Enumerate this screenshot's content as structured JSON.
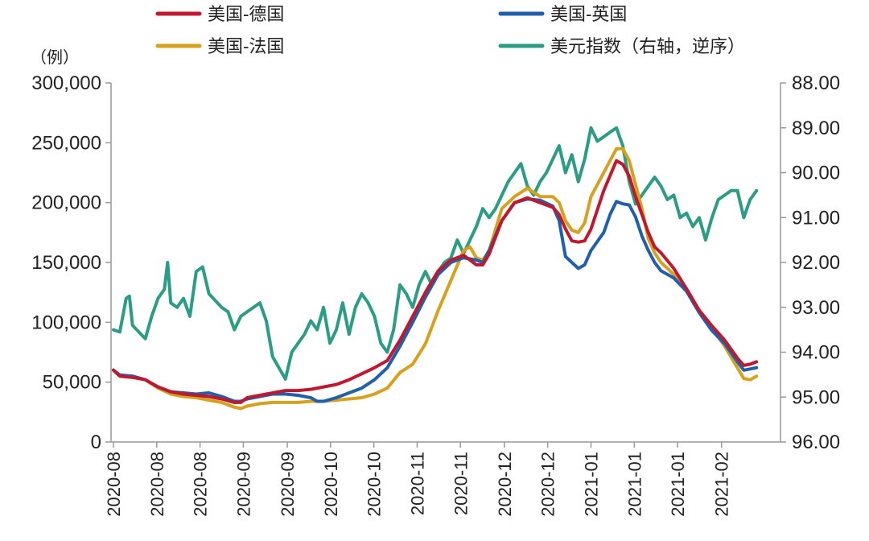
{
  "chart_data": {
    "type": "line",
    "ylabel_left": "（例）",
    "left_axis": {
      "min": 0,
      "max": 300000,
      "ticks": [
        "0",
        "50,000",
        "100,000",
        "150,000",
        "200,000",
        "250,000",
        "300,000"
      ]
    },
    "right_axis": {
      "min": 88,
      "max": 96,
      "inverted": true,
      "ticks": [
        "88.00",
        "89.00",
        "90.00",
        "91.00",
        "92.00",
        "93.00",
        "94.00",
        "95.00",
        "96.00"
      ]
    },
    "x_ticks": [
      "2020-08",
      "2020-08",
      "2020-08",
      "2020-09",
      "2020-09",
      "2020-10",
      "2020-10",
      "2020-11",
      "2020-11",
      "2020-12",
      "2020-12",
      "2021-01",
      "2021-01",
      "2021-01",
      "2021-02"
    ],
    "x_range": [
      0,
      100
    ],
    "x_tick_positions": [
      0,
      6.8,
      13.6,
      20.4,
      27.3,
      34.1,
      40.9,
      47.7,
      54.5,
      61.4,
      68.2,
      75.0,
      81.8,
      88.6,
      95.5
    ],
    "legend_placement": "top",
    "series": [
      {
        "name": "美国-德国",
        "axis": "left",
        "color": "#c0182f",
        "points": [
          [
            0,
            60000
          ],
          [
            1,
            55000
          ],
          [
            3,
            54000
          ],
          [
            5,
            52000
          ],
          [
            7,
            46000
          ],
          [
            9,
            42000
          ],
          [
            11,
            40000
          ],
          [
            13,
            39000
          ],
          [
            15,
            38000
          ],
          [
            17,
            36000
          ],
          [
            19,
            33000
          ],
          [
            20,
            33000
          ],
          [
            21,
            37000
          ],
          [
            23,
            39000
          ],
          [
            25,
            41000
          ],
          [
            27,
            43000
          ],
          [
            29,
            43000
          ],
          [
            31,
            44000
          ],
          [
            33,
            46000
          ],
          [
            35,
            48000
          ],
          [
            37,
            52000
          ],
          [
            39,
            57000
          ],
          [
            41,
            62000
          ],
          [
            43,
            68000
          ],
          [
            45,
            85000
          ],
          [
            47,
            105000
          ],
          [
            49,
            125000
          ],
          [
            51,
            143000
          ],
          [
            53,
            152000
          ],
          [
            55,
            156000
          ],
          [
            56,
            152000
          ],
          [
            57,
            148000
          ],
          [
            58,
            148000
          ],
          [
            59,
            157000
          ],
          [
            61,
            185000
          ],
          [
            63,
            200000
          ],
          [
            65,
            204000
          ],
          [
            67,
            200000
          ],
          [
            69,
            196000
          ],
          [
            70,
            190000
          ],
          [
            71,
            178000
          ],
          [
            72,
            168000
          ],
          [
            73,
            167000
          ],
          [
            74,
            168000
          ],
          [
            75,
            178000
          ],
          [
            77,
            210000
          ],
          [
            79,
            235000
          ],
          [
            80,
            232000
          ],
          [
            81,
            222000
          ],
          [
            82,
            205000
          ],
          [
            83,
            190000
          ],
          [
            84,
            175000
          ],
          [
            85,
            163000
          ],
          [
            86,
            158000
          ],
          [
            88,
            145000
          ],
          [
            90,
            128000
          ],
          [
            92,
            110000
          ],
          [
            94,
            97000
          ],
          [
            96,
            85000
          ],
          [
            98,
            70000
          ],
          [
            99,
            64000
          ],
          [
            100,
            65000
          ],
          [
            101,
            67000
          ]
        ]
      },
      {
        "name": "美国-英国",
        "axis": "left",
        "color": "#1f5fad",
        "points": [
          [
            0,
            60000
          ],
          [
            1,
            56000
          ],
          [
            3,
            55000
          ],
          [
            5,
            52000
          ],
          [
            7,
            46000
          ],
          [
            9,
            42000
          ],
          [
            11,
            41000
          ],
          [
            13,
            40000
          ],
          [
            15,
            41000
          ],
          [
            17,
            38000
          ],
          [
            19,
            34000
          ],
          [
            20,
            34000
          ],
          [
            21,
            36000
          ],
          [
            23,
            38000
          ],
          [
            25,
            40000
          ],
          [
            27,
            40000
          ],
          [
            29,
            39000
          ],
          [
            31,
            37000
          ],
          [
            32,
            34000
          ],
          [
            33,
            34000
          ],
          [
            35,
            37000
          ],
          [
            37,
            41000
          ],
          [
            39,
            45000
          ],
          [
            41,
            52000
          ],
          [
            43,
            62000
          ],
          [
            45,
            80000
          ],
          [
            47,
            100000
          ],
          [
            49,
            121000
          ],
          [
            51,
            140000
          ],
          [
            53,
            150000
          ],
          [
            55,
            154000
          ],
          [
            57,
            152000
          ],
          [
            58,
            150000
          ],
          [
            59,
            160000
          ],
          [
            61,
            185000
          ],
          [
            63,
            200000
          ],
          [
            65,
            203000
          ],
          [
            67,
            202000
          ],
          [
            69,
            197000
          ],
          [
            70,
            185000
          ],
          [
            71,
            155000
          ],
          [
            72,
            150000
          ],
          [
            73,
            145000
          ],
          [
            74,
            148000
          ],
          [
            75,
            160000
          ],
          [
            77,
            175000
          ],
          [
            78,
            190000
          ],
          [
            79,
            201000
          ],
          [
            80,
            199000
          ],
          [
            81,
            198000
          ],
          [
            82,
            188000
          ],
          [
            83,
            172000
          ],
          [
            84,
            160000
          ],
          [
            85,
            150000
          ],
          [
            86,
            143000
          ],
          [
            88,
            137000
          ],
          [
            90,
            126000
          ],
          [
            92,
            108000
          ],
          [
            94,
            93000
          ],
          [
            96,
            82000
          ],
          [
            98,
            67000
          ],
          [
            99,
            60000
          ],
          [
            100,
            61000
          ],
          [
            101,
            62000
          ]
        ]
      },
      {
        "name": "美国-法国",
        "axis": "left",
        "color": "#d7a11e",
        "points": [
          [
            0,
            60000
          ],
          [
            1,
            55000
          ],
          [
            3,
            54000
          ],
          [
            5,
            52000
          ],
          [
            7,
            45000
          ],
          [
            9,
            40000
          ],
          [
            11,
            38000
          ],
          [
            13,
            37000
          ],
          [
            15,
            35000
          ],
          [
            17,
            33000
          ],
          [
            19,
            29000
          ],
          [
            20,
            28000
          ],
          [
            21,
            30000
          ],
          [
            23,
            32000
          ],
          [
            25,
            33000
          ],
          [
            27,
            33000
          ],
          [
            29,
            33000
          ],
          [
            31,
            34000
          ],
          [
            33,
            34000
          ],
          [
            35,
            35000
          ],
          [
            37,
            36000
          ],
          [
            39,
            37000
          ],
          [
            41,
            40000
          ],
          [
            43,
            45000
          ],
          [
            45,
            58000
          ],
          [
            47,
            65000
          ],
          [
            49,
            82000
          ],
          [
            51,
            110000
          ],
          [
            53,
            135000
          ],
          [
            55,
            160000
          ],
          [
            56,
            163000
          ],
          [
            57,
            154000
          ],
          [
            58,
            152000
          ],
          [
            59,
            160000
          ],
          [
            61,
            195000
          ],
          [
            63,
            205000
          ],
          [
            65,
            212000
          ],
          [
            67,
            205000
          ],
          [
            69,
            205000
          ],
          [
            70,
            200000
          ],
          [
            71,
            185000
          ],
          [
            72,
            177000
          ],
          [
            73,
            175000
          ],
          [
            74,
            183000
          ],
          [
            75,
            205000
          ],
          [
            77,
            225000
          ],
          [
            79,
            245000
          ],
          [
            80,
            245000
          ],
          [
            81,
            235000
          ],
          [
            82,
            215000
          ],
          [
            83,
            195000
          ],
          [
            84,
            170000
          ],
          [
            85,
            158000
          ],
          [
            86,
            150000
          ],
          [
            88,
            140000
          ],
          [
            90,
            126000
          ],
          [
            92,
            110000
          ],
          [
            94,
            95000
          ],
          [
            96,
            80000
          ],
          [
            98,
            62000
          ],
          [
            99,
            53000
          ],
          [
            100,
            52000
          ],
          [
            101,
            55000
          ]
        ]
      },
      {
        "name": "美元指数（右轴，逆序）",
        "axis": "right",
        "color": "#2a9d84",
        "points": [
          [
            0,
            93.5
          ],
          [
            1,
            93.55
          ],
          [
            2,
            92.8
          ],
          [
            2.5,
            92.75
          ],
          [
            3,
            93.4
          ],
          [
            5,
            93.7
          ],
          [
            6,
            93.2
          ],
          [
            7,
            92.8
          ],
          [
            8,
            92.6
          ],
          [
            8.5,
            92.0
          ],
          [
            9,
            92.9
          ],
          [
            10,
            93.0
          ],
          [
            11,
            92.8
          ],
          [
            12,
            93.2
          ],
          [
            13,
            92.2
          ],
          [
            14,
            92.1
          ],
          [
            15,
            92.7
          ],
          [
            17,
            93.0
          ],
          [
            18,
            93.1
          ],
          [
            19,
            93.5
          ],
          [
            20,
            93.2
          ],
          [
            21,
            93.1
          ],
          [
            23,
            92.9
          ],
          [
            24,
            93.3
          ],
          [
            25,
            94.1
          ],
          [
            27,
            94.6
          ],
          [
            28,
            94.0
          ],
          [
            29,
            93.8
          ],
          [
            30,
            93.6
          ],
          [
            31,
            93.3
          ],
          [
            32,
            93.5
          ],
          [
            33,
            93.0
          ],
          [
            34,
            93.8
          ],
          [
            35,
            93.5
          ],
          [
            36,
            92.9
          ],
          [
            37,
            93.6
          ],
          [
            38,
            93.0
          ],
          [
            39,
            92.7
          ],
          [
            40,
            92.9
          ],
          [
            41,
            93.2
          ],
          [
            42,
            93.8
          ],
          [
            43,
            94.0
          ],
          [
            44,
            93.5
          ],
          [
            45,
            92.5
          ],
          [
            46,
            92.7
          ],
          [
            47,
            93.0
          ],
          [
            48,
            92.5
          ],
          [
            49,
            92.2
          ],
          [
            50,
            92.5
          ],
          [
            51,
            92.2
          ],
          [
            52,
            92.0
          ],
          [
            53,
            91.9
          ],
          [
            54,
            91.5
          ],
          [
            55,
            91.8
          ],
          [
            56,
            91.5
          ],
          [
            57,
            91.2
          ],
          [
            58,
            90.8
          ],
          [
            59,
            91.0
          ],
          [
            60,
            90.8
          ],
          [
            61,
            90.5
          ],
          [
            62,
            90.2
          ],
          [
            63,
            90.0
          ],
          [
            64,
            89.8
          ],
          [
            65,
            90.3
          ],
          [
            66,
            90.5
          ],
          [
            67,
            90.2
          ],
          [
            68,
            90.0
          ],
          [
            69,
            89.7
          ],
          [
            70,
            89.4
          ],
          [
            71,
            90.0
          ],
          [
            72,
            89.6
          ],
          [
            73,
            90.2
          ],
          [
            74,
            89.7
          ],
          [
            75,
            89.0
          ],
          [
            76,
            89.3
          ],
          [
            77,
            89.2
          ],
          [
            78,
            89.1
          ],
          [
            79,
            89.0
          ],
          [
            80,
            89.4
          ],
          [
            81,
            90.2
          ],
          [
            82,
            90.7
          ],
          [
            83,
            90.5
          ],
          [
            84,
            90.3
          ],
          [
            85,
            90.1
          ],
          [
            86,
            90.3
          ],
          [
            87,
            90.6
          ],
          [
            88,
            90.5
          ],
          [
            89,
            91.0
          ],
          [
            90,
            90.9
          ],
          [
            91,
            91.2
          ],
          [
            92,
            91.0
          ],
          [
            93,
            91.5
          ],
          [
            94,
            91.0
          ],
          [
            95,
            90.6
          ],
          [
            96,
            90.5
          ],
          [
            97,
            90.4
          ],
          [
            98,
            90.4
          ],
          [
            99,
            91.0
          ],
          [
            100,
            90.6
          ],
          [
            101,
            90.4
          ]
        ]
      }
    ]
  }
}
